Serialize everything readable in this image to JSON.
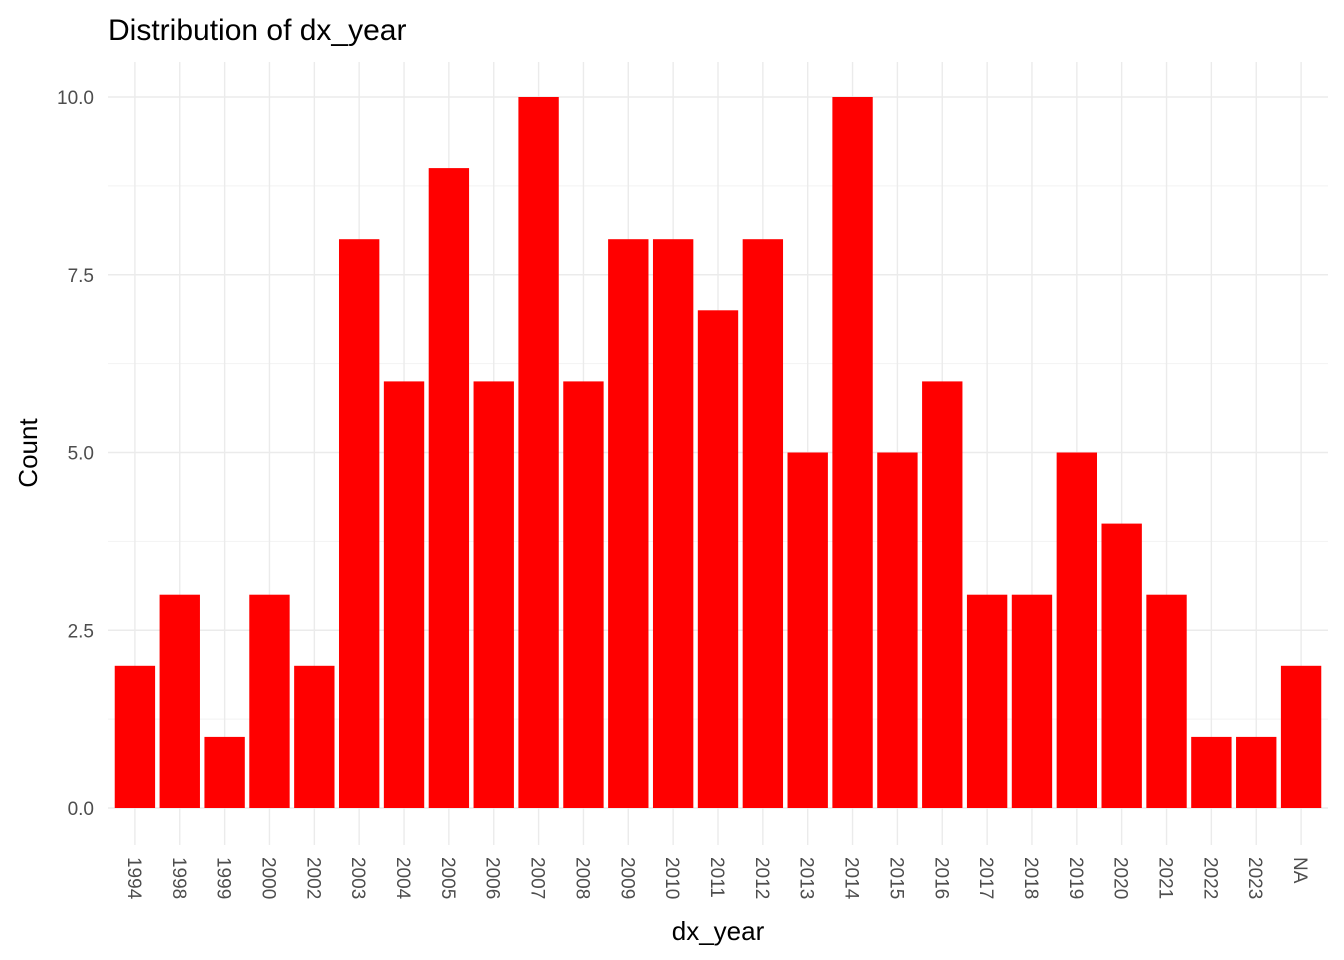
{
  "chart_data": {
    "type": "bar",
    "title": "Distribution of dx_year",
    "xlabel": "dx_year",
    "ylabel": "Count",
    "categories": [
      "1994",
      "1998",
      "1999",
      "2000",
      "2002",
      "2003",
      "2004",
      "2005",
      "2006",
      "2007",
      "2008",
      "2009",
      "2010",
      "2011",
      "2012",
      "2013",
      "2014",
      "2015",
      "2016",
      "2017",
      "2018",
      "2019",
      "2020",
      "2021",
      "2022",
      "2023",
      "NA"
    ],
    "values": [
      2,
      3,
      1,
      3,
      2,
      8,
      6,
      9,
      6,
      10,
      6,
      8,
      8,
      7,
      8,
      5,
      10,
      5,
      6,
      3,
      3,
      5,
      4,
      3,
      1,
      1,
      2
    ],
    "yticks": [
      "0.0",
      "2.5",
      "5.0",
      "7.5",
      "10.0"
    ],
    "ytick_values": [
      0,
      2.5,
      5,
      7.5,
      10
    ],
    "ylim": [
      -0.5,
      10.5
    ],
    "grid": true,
    "legend": "none",
    "bar_color": "#ff0000"
  }
}
